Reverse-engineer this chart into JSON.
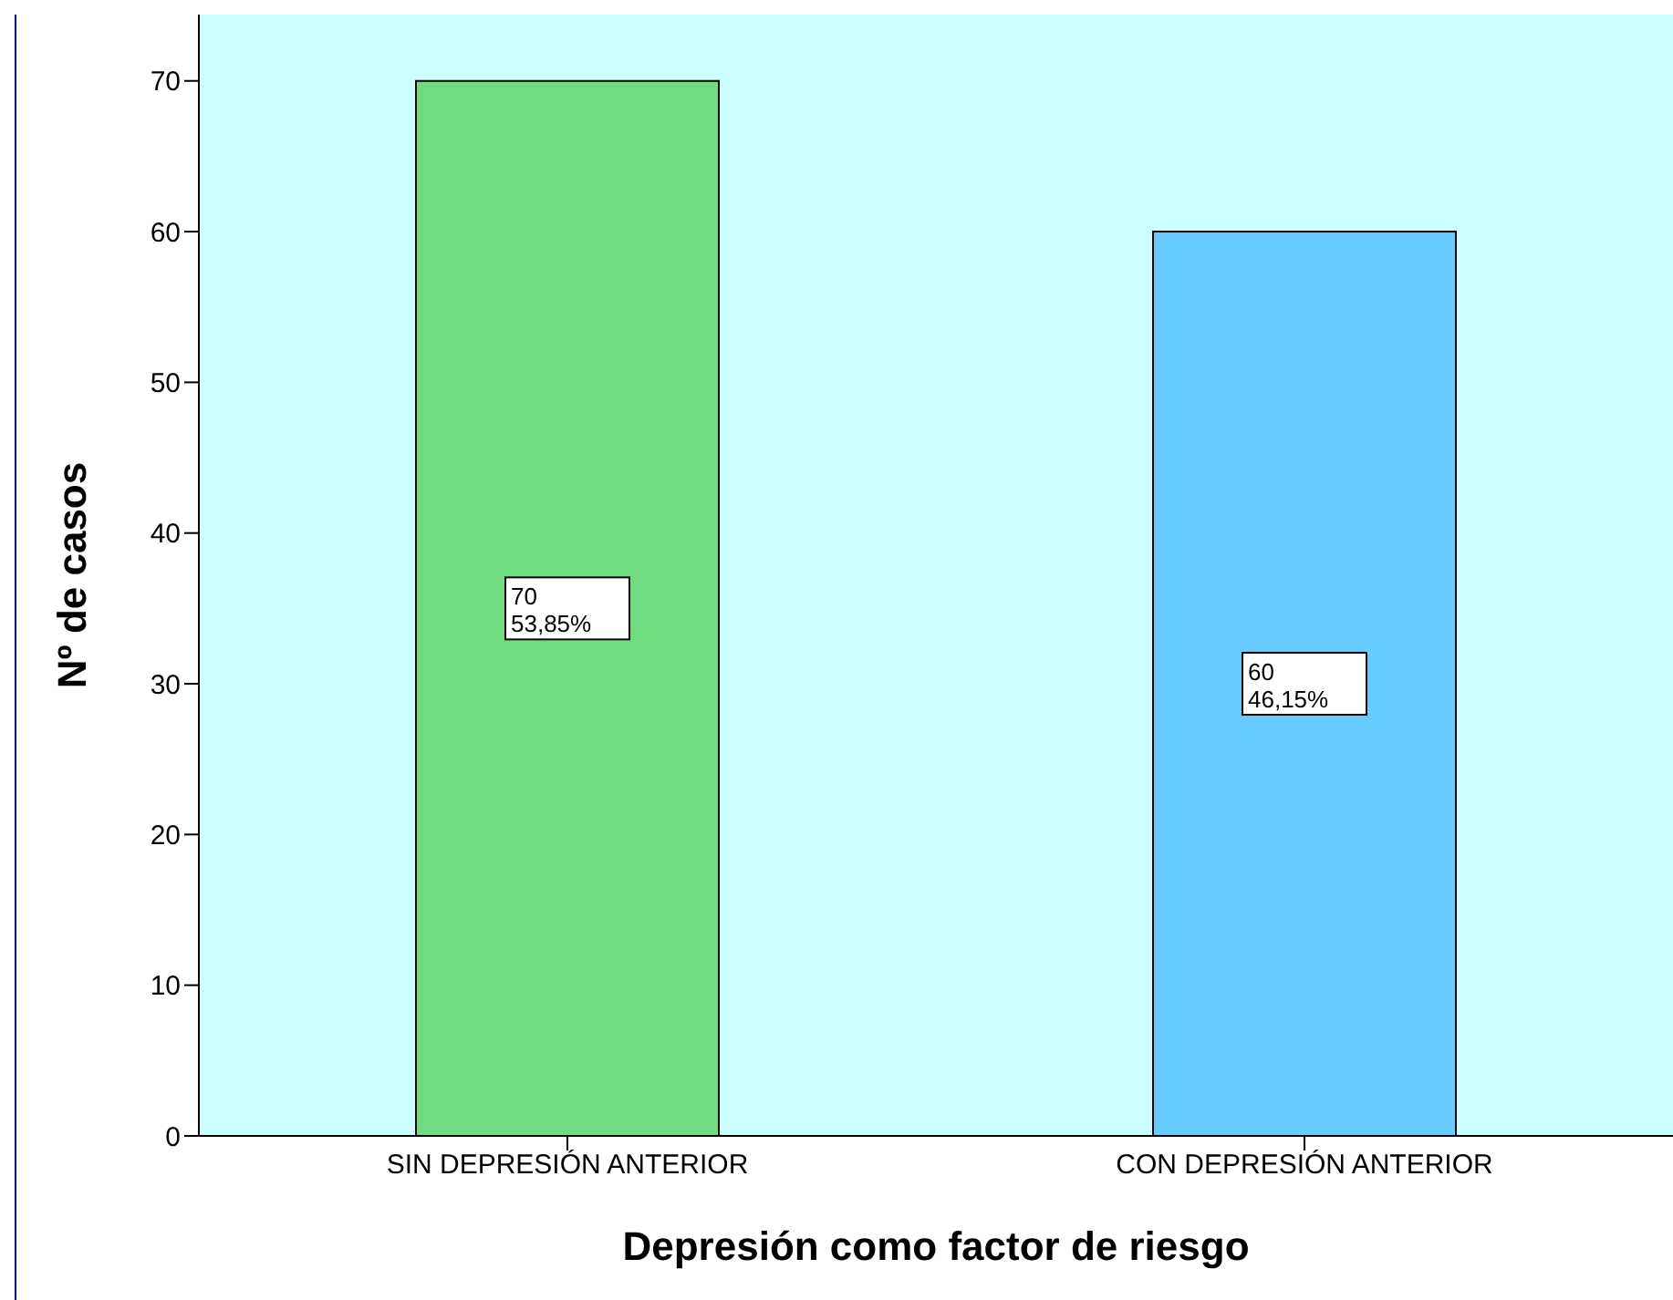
{
  "chart_data": {
    "type": "bar",
    "xlabel": "Depresión como factor de riesgo",
    "ylabel": "Nº de casos",
    "categories": [
      "SIN DEPRESIÓN ANTERIOR",
      "CON DEPRESIÓN ANTERIOR"
    ],
    "values": [
      70,
      60
    ],
    "colors": [
      "#70dc82",
      "#66ccff"
    ],
    "value_labels": [
      "70\n53,85%",
      "60\n46,15%"
    ],
    "ylim": [
      0,
      74.4
    ],
    "yticks": [
      0,
      10,
      20,
      30,
      40,
      50,
      60,
      70
    ],
    "grid": false
  }
}
